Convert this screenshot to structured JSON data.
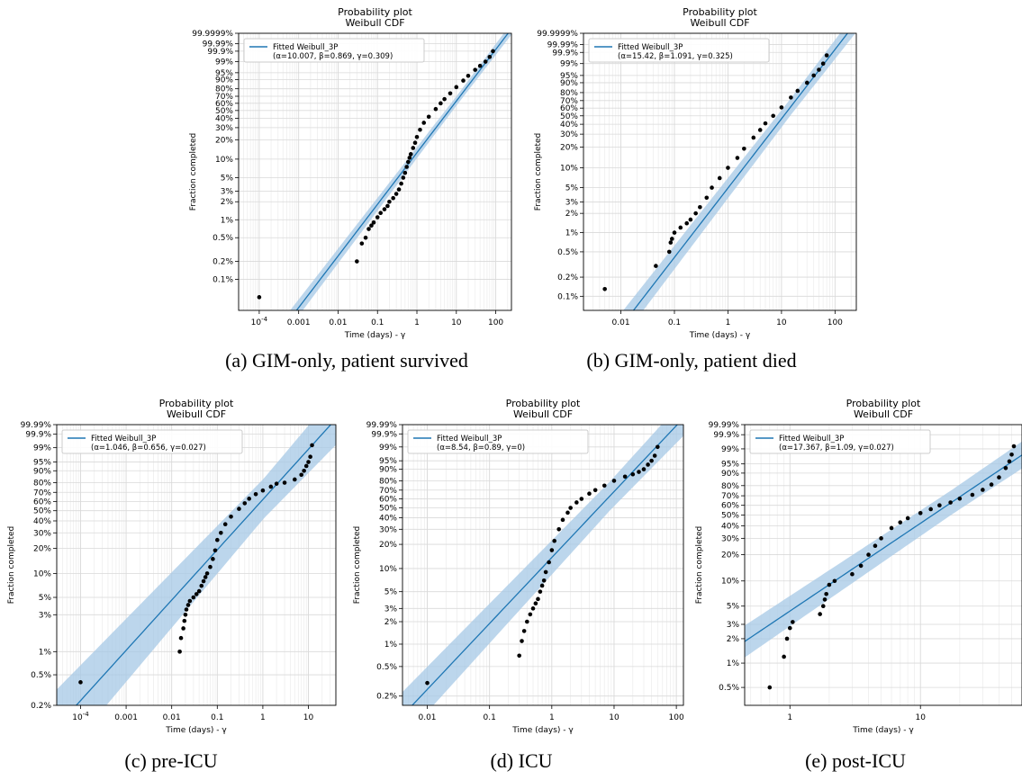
{
  "figure": {
    "captions": [
      "(a) GIM-only, patient survived",
      "(b) GIM-only, patient died",
      "(c) pre-ICU",
      "(d) ICU",
      "(e) post-ICU"
    ]
  },
  "colors": {
    "fit_line": "#1f77b4",
    "band": "#a6c8e6",
    "points": "#000000",
    "grid": "#d9d9d9"
  },
  "chart_data": [
    {
      "type": "scatter",
      "title": "Probability plot",
      "subtitle": "Weibull CDF",
      "xlabel": "Time (days) - γ",
      "ylabel": "Fraction completed",
      "xscale": "log",
      "yscale": "weibull",
      "xlim": [
        3e-05,
        250
      ],
      "ylim": [
        0.0003,
        0.999999
      ],
      "x_tick_labels": [
        "10^-4",
        "0.001",
        "0.01",
        "0.1",
        "1",
        "10",
        "100"
      ],
      "y_tick_labels": [
        "0.1%",
        "0.2%",
        "0.5%",
        "1%",
        "2%",
        "3%",
        "5%",
        "10%",
        "20%",
        "30%",
        "40%",
        "50%",
        "60%",
        "70%",
        "80%",
        "90%",
        "95%",
        "99%",
        "99.9%",
        "99.99%",
        "99.9999%"
      ],
      "legend": {
        "position": "top-left",
        "label": "Fitted Weibull_3P",
        "params": "(α=10.007, β=0.869, γ=0.309)"
      },
      "fit": {
        "alpha": 10.007,
        "beta": 0.869,
        "band_width": 0.18
      },
      "series": [
        {
          "x": [
            0.0001,
            0.03,
            0.04,
            0.05,
            0.06,
            0.07,
            0.08,
            0.1,
            0.12,
            0.15,
            0.18,
            0.2,
            0.25,
            0.3,
            0.35,
            0.4,
            0.45,
            0.5,
            0.55,
            0.6,
            0.65,
            0.7,
            0.8,
            0.9,
            1.0,
            1.2,
            1.5,
            2,
            3,
            4,
            5,
            7,
            10,
            15,
            20,
            30,
            40,
            55,
            70,
            85
          ],
          "y": [
            0.0005,
            0.002,
            0.004,
            0.005,
            0.007,
            0.008,
            0.009,
            0.011,
            0.013,
            0.015,
            0.017,
            0.02,
            0.023,
            0.027,
            0.032,
            0.04,
            0.05,
            0.06,
            0.075,
            0.09,
            0.105,
            0.12,
            0.15,
            0.18,
            0.22,
            0.28,
            0.35,
            0.42,
            0.52,
            0.6,
            0.66,
            0.74,
            0.82,
            0.89,
            0.93,
            0.965,
            0.98,
            0.99,
            0.996,
            0.999
          ]
        }
      ]
    },
    {
      "type": "scatter",
      "title": "Probability plot",
      "subtitle": "Weibull CDF",
      "xlabel": "Time (days) - γ",
      "ylabel": "Fraction completed",
      "xscale": "log",
      "yscale": "weibull",
      "xlim": [
        0.002,
        250
      ],
      "ylim": [
        0.0006,
        0.999999
      ],
      "x_tick_labels": [
        "0.01",
        "0.1",
        "1",
        "10",
        "100"
      ],
      "y_tick_labels": [
        "0.1%",
        "0.2%",
        "0.5%",
        "1%",
        "2%",
        "3%",
        "5%",
        "10%",
        "20%",
        "30%",
        "40%",
        "50%",
        "60%",
        "70%",
        "80%",
        "90%",
        "95%",
        "99%",
        "99.9%",
        "99.99%",
        "99.9999%"
      ],
      "legend": {
        "position": "top-left",
        "label": "Fitted Weibull_3P",
        "params": "(α=15.42, β=1.091, γ=0.325)"
      },
      "fit": {
        "alpha": 15.42,
        "beta": 1.091,
        "band_width": 0.3
      },
      "series": [
        {
          "x": [
            0.005,
            0.045,
            0.08,
            0.085,
            0.09,
            0.1,
            0.13,
            0.17,
            0.2,
            0.25,
            0.3,
            0.4,
            0.5,
            0.7,
            1.0,
            1.5,
            2,
            3,
            4,
            5,
            7,
            10,
            15,
            20,
            30,
            40,
            50,
            60,
            70
          ],
          "y": [
            0.0013,
            0.003,
            0.005,
            0.007,
            0.008,
            0.01,
            0.012,
            0.014,
            0.016,
            0.02,
            0.025,
            0.035,
            0.05,
            0.07,
            0.1,
            0.14,
            0.19,
            0.27,
            0.34,
            0.41,
            0.5,
            0.61,
            0.74,
            0.82,
            0.9,
            0.95,
            0.975,
            0.99,
            0.998
          ]
        }
      ]
    },
    {
      "type": "scatter",
      "title": "Probability plot",
      "subtitle": "Weibull CDF",
      "xlabel": "Time (days) - γ",
      "ylabel": "Fraction completed",
      "xscale": "log",
      "yscale": "weibull",
      "xlim": [
        3e-05,
        40
      ],
      "ylim": [
        0.002,
        0.9999
      ],
      "x_tick_labels": [
        "10^-4",
        "0.001",
        "0.01",
        "0.1",
        "1",
        "10"
      ],
      "y_tick_labels": [
        "0.2%",
        "0.5%",
        "1%",
        "3%",
        "5%",
        "10%",
        "20%",
        "30%",
        "40%",
        "50%",
        "60%",
        "70%",
        "80%",
        "90%",
        "95%",
        "99%",
        "99.9%",
        "99.99%"
      ],
      "legend": {
        "position": "top-left",
        "label": "Fitted Weibull_3P",
        "params": "(α=1.046, β=0.656, γ=0.027)"
      },
      "fit": {
        "alpha": 1.046,
        "beta": 0.656,
        "band_width": 0.6
      },
      "series": [
        {
          "x": [
            0.0001,
            0.015,
            0.016,
            0.018,
            0.019,
            0.02,
            0.021,
            0.023,
            0.025,
            0.03,
            0.035,
            0.04,
            0.045,
            0.05,
            0.055,
            0.06,
            0.07,
            0.08,
            0.09,
            0.1,
            0.12,
            0.15,
            0.2,
            0.3,
            0.4,
            0.5,
            0.7,
            1,
            1.5,
            2,
            3,
            5,
            7,
            8,
            9,
            10,
            11,
            12
          ],
          "y": [
            0.004,
            0.01,
            0.015,
            0.02,
            0.025,
            0.03,
            0.035,
            0.04,
            0.045,
            0.05,
            0.055,
            0.06,
            0.07,
            0.08,
            0.09,
            0.1,
            0.12,
            0.15,
            0.19,
            0.25,
            0.3,
            0.37,
            0.44,
            0.52,
            0.58,
            0.63,
            0.68,
            0.72,
            0.76,
            0.79,
            0.8,
            0.83,
            0.87,
            0.9,
            0.93,
            0.95,
            0.97,
            0.993
          ]
        }
      ]
    },
    {
      "type": "scatter",
      "title": "Probability plot",
      "subtitle": "Weibull CDF",
      "xlabel": "Time (days) - γ",
      "ylabel": "Fraction completed",
      "xscale": "log",
      "yscale": "weibull",
      "xlim": [
        0.004,
        130
      ],
      "ylim": [
        0.0015,
        0.9999
      ],
      "x_tick_labels": [
        "0.01",
        "0.1",
        "1",
        "10",
        "100"
      ],
      "y_tick_labels": [
        "0.2%",
        "0.5%",
        "1%",
        "2%",
        "3%",
        "5%",
        "10%",
        "20%",
        "30%",
        "40%",
        "50%",
        "60%",
        "70%",
        "80%",
        "90%",
        "95%",
        "99%",
        "99.9%",
        "99.99%"
      ],
      "legend": {
        "position": "top-left",
        "label": "Fitted Weibull_3P",
        "params": "(α=8.54, β=0.89, γ=0)"
      },
      "fit": {
        "alpha": 8.54,
        "beta": 0.89,
        "band_width": 0.45
      },
      "series": [
        {
          "x": [
            0.01,
            0.3,
            0.33,
            0.36,
            0.4,
            0.45,
            0.5,
            0.55,
            0.6,
            0.65,
            0.7,
            0.75,
            0.8,
            0.9,
            1.0,
            1.1,
            1.3,
            1.5,
            1.8,
            2,
            2.5,
            3,
            4,
            5,
            7,
            10,
            15,
            20,
            25,
            30,
            35,
            40,
            45,
            50
          ],
          "y": [
            0.003,
            0.007,
            0.011,
            0.015,
            0.02,
            0.025,
            0.03,
            0.035,
            0.04,
            0.05,
            0.06,
            0.07,
            0.09,
            0.12,
            0.17,
            0.22,
            0.3,
            0.38,
            0.45,
            0.5,
            0.56,
            0.6,
            0.66,
            0.7,
            0.75,
            0.8,
            0.84,
            0.86,
            0.88,
            0.9,
            0.93,
            0.95,
            0.97,
            0.99
          ]
        }
      ]
    },
    {
      "type": "scatter",
      "title": "Probability plot",
      "subtitle": "Weibull CDF",
      "xlabel": "Time (days) - γ",
      "ylabel": "Fraction completed",
      "xscale": "log",
      "yscale": "weibull",
      "xlim": [
        0.45,
        60
      ],
      "ylim": [
        0.003,
        0.9999
      ],
      "x_tick_labels": [
        "1",
        "10"
      ],
      "y_tick_labels": [
        "0.5%",
        "1%",
        "2%",
        "3%",
        "5%",
        "10%",
        "20%",
        "30%",
        "40%",
        "50%",
        "60%",
        "70%",
        "80%",
        "90%",
        "95%",
        "99%",
        "99.9%",
        "99.99%"
      ],
      "legend": {
        "position": "top-left",
        "label": "Fitted Weibull_3P",
        "params": "(α=17.367, β=1.09, γ=0.027)"
      },
      "fit": {
        "alpha": 17.367,
        "beta": 1.09,
        "band_width": 0.35
      },
      "series": [
        {
          "x": [
            0.7,
            0.9,
            0.95,
            1.0,
            1.05,
            1.7,
            1.8,
            1.85,
            1.9,
            2,
            2.2,
            3,
            3.5,
            4,
            4.5,
            5,
            6,
            7,
            8,
            10,
            12,
            14,
            17,
            20,
            25,
            30,
            35,
            40,
            45,
            48,
            50,
            52
          ],
          "y": [
            0.005,
            0.012,
            0.02,
            0.027,
            0.032,
            0.04,
            0.05,
            0.06,
            0.07,
            0.09,
            0.1,
            0.12,
            0.15,
            0.2,
            0.25,
            0.3,
            0.38,
            0.43,
            0.47,
            0.52,
            0.56,
            0.6,
            0.63,
            0.67,
            0.71,
            0.76,
            0.81,
            0.87,
            0.93,
            0.96,
            0.98,
            0.993
          ]
        }
      ]
    }
  ]
}
